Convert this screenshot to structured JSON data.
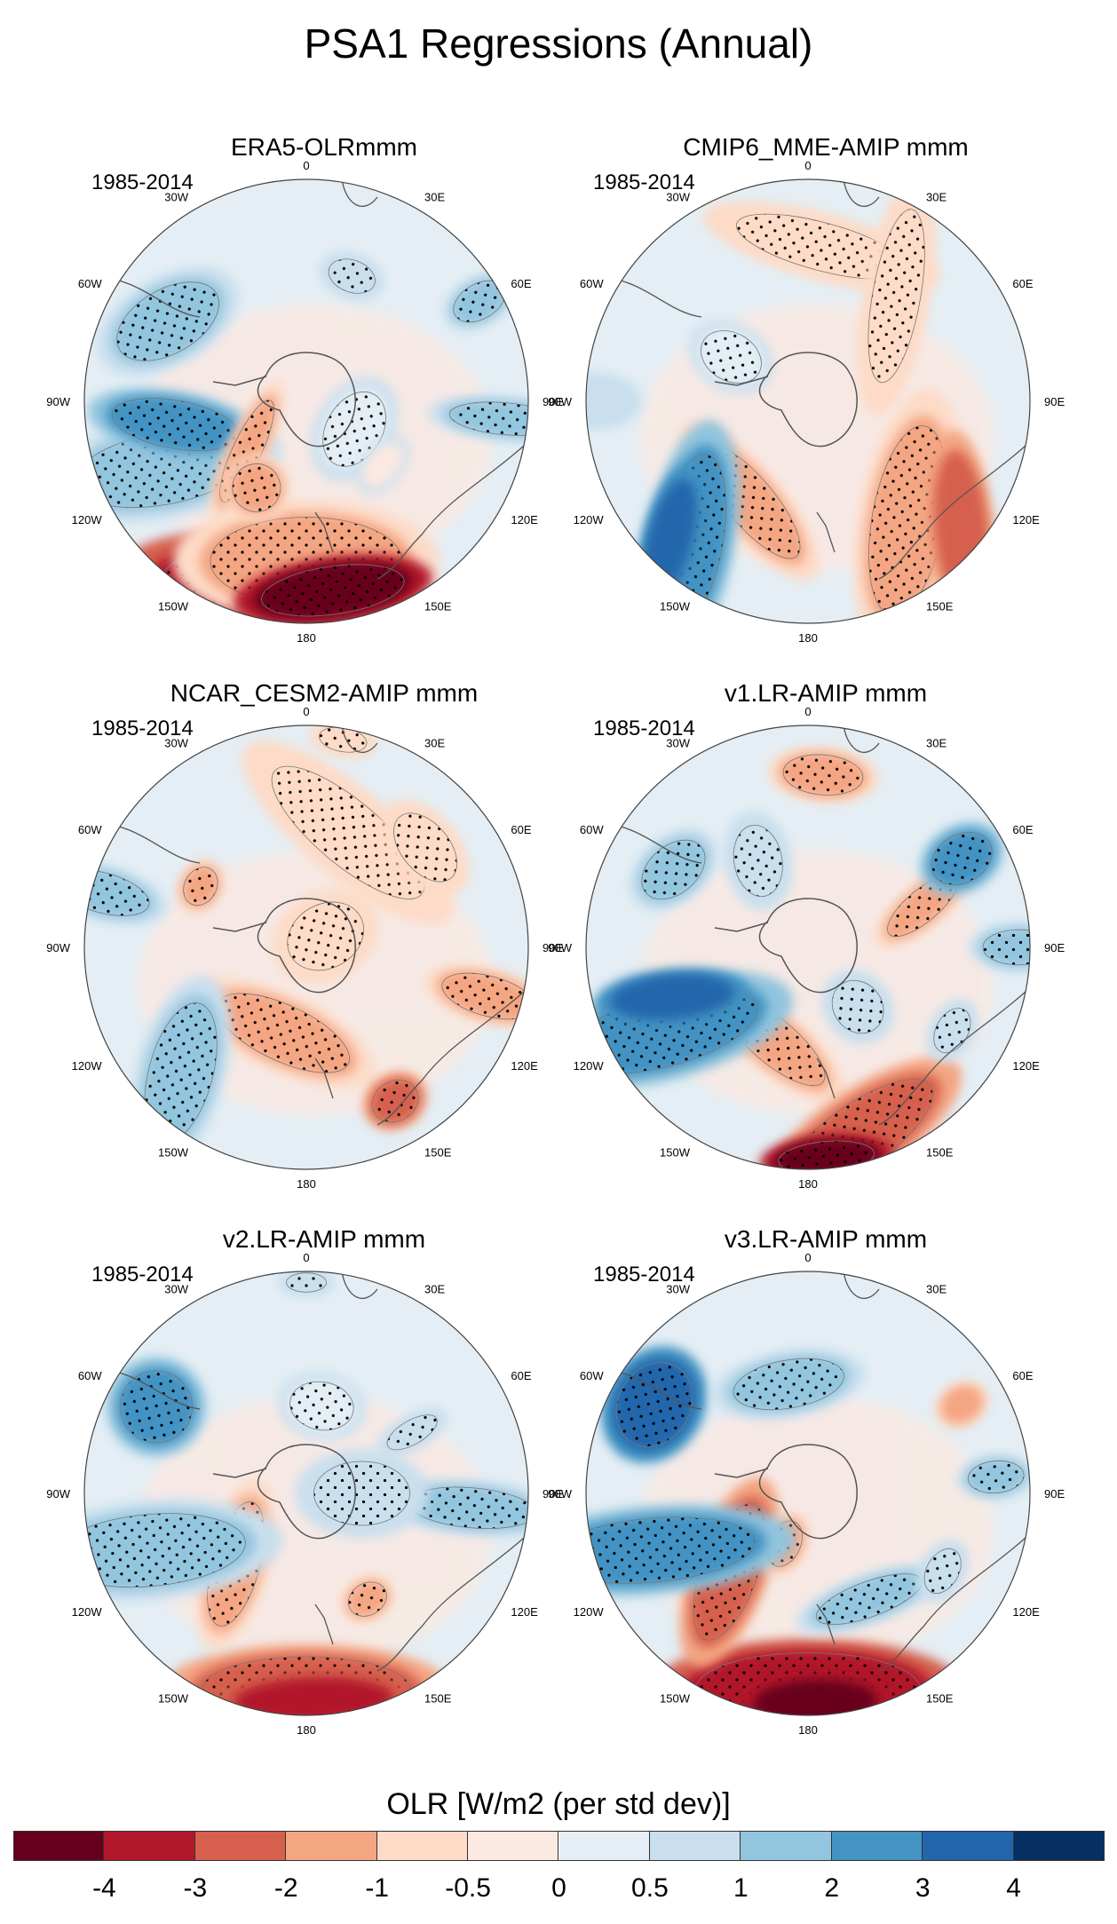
{
  "title": "PSA1 Regressions (Annual)",
  "panels": [
    {
      "title": "ERA5-OLRmmm",
      "period": "1985-2014"
    },
    {
      "title": "CMIP6_MME-AMIP  mmm",
      "period": "1985-2014"
    },
    {
      "title": "NCAR_CESM2-AMIP  mmm",
      "period": "1985-2014"
    },
    {
      "title": "v1.LR-AMIP  mmm",
      "period": "1985-2014"
    },
    {
      "title": "v2.LR-AMIP  mmm",
      "period": "1985-2014"
    },
    {
      "title": "v3.LR-AMIP  mmm",
      "period": "1985-2014"
    }
  ],
  "lon_labels": [
    "0",
    "30E",
    "60E",
    "90E",
    "120E",
    "150E",
    "180",
    "150W",
    "120W",
    "90W",
    "60W",
    "30W"
  ],
  "colorbar": {
    "title": "OLR [W/m2 (per std dev)]",
    "labels": [
      "-4",
      "-3",
      "-2",
      "-1",
      "-0.5",
      "0",
      "0.5",
      "1",
      "2",
      "3",
      "4"
    ],
    "colors": [
      "#67001f",
      "#b2182b",
      "#d6604d",
      "#f4a582",
      "#fddbc7",
      "#fbe9e2",
      "#e4eef4",
      "#c9dfee",
      "#92c5de",
      "#4393c3",
      "#2166ac",
      "#053061"
    ]
  },
  "chart_data": {
    "type": "map",
    "projection": "south-polar stereographic",
    "variable": "OLR regression on PSA1",
    "units": "W/m2 (per std dev)",
    "levels": [
      -4,
      -3,
      -2,
      -1,
      -0.5,
      0,
      0.5,
      1,
      2,
      3,
      4
    ],
    "panels": [
      "ERA5-OLRmmm",
      "CMIP6_MME-AMIP  mmm",
      "NCAR_CESM2-AMIP  mmm",
      "v1.LR-AMIP  mmm",
      "v2.LR-AMIP  mmm",
      "v3.LR-AMIP  mmm"
    ]
  }
}
